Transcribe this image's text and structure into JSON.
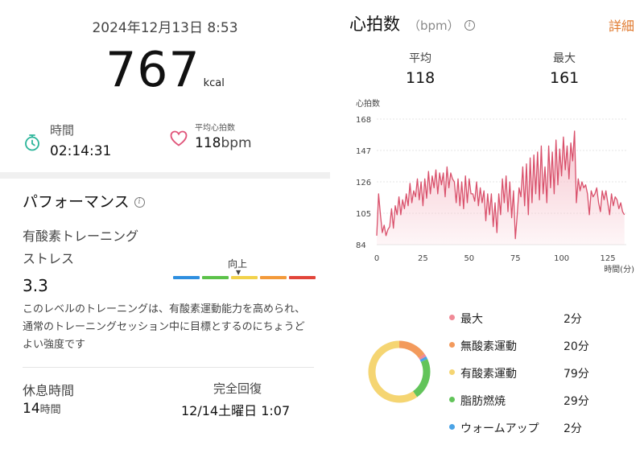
{
  "summary": {
    "datetime": "2024年12月13日 8:53",
    "calories": "767",
    "calories_unit": "kcal",
    "duration_label": "時間",
    "duration_value": "02:14:31",
    "avg_hr_label": "平均心拍数",
    "avg_hr_value": "118",
    "avg_hr_unit": "bpm"
  },
  "performance": {
    "title": "パフォーマンス",
    "stress_label_line1": "有酸素トレーニング",
    "stress_label_line2": "ストレス",
    "stress_value": "3.3",
    "bar_label": "向上",
    "bar_marker": "▼",
    "bar_colors": [
      "#2e8fe0",
      "#5cc24a",
      "#f2d24b",
      "#f39a3a",
      "#e2453a"
    ],
    "bar_level_segment": 3,
    "description": "このレベルのトレーニングは、有酸素運動能力を高められ、通常のトレーニングセッション中に目標とするのにちょうどよい強度です",
    "rest_label": "休息時間",
    "rest_value": "14",
    "rest_unit": "時間",
    "recovery_label": "完全回復",
    "recovery_value": "12/14土曜日 1:07"
  },
  "heart_rate": {
    "title": "心拍数",
    "unit": "（bpm）",
    "detail_link": "詳細",
    "avg_label": "平均",
    "avg_value": "118",
    "max_label": "最大",
    "max_value": "161"
  },
  "colors": {
    "accent": "#e07a2f",
    "hr_line": "#d9506b",
    "hr_fill": "#f6c2cc",
    "heart_icon": "#e0557a",
    "timer_icon": "#2bb59a"
  },
  "chart_data": {
    "type": "area",
    "ylabel": "心拍数",
    "xlabel": "時間(分)",
    "xlim": [
      0,
      135
    ],
    "ylim": [
      84,
      168
    ],
    "y_ticks": [
      "168",
      "147",
      "126",
      "105",
      "84"
    ],
    "x_ticks": [
      "0",
      "25",
      "50",
      "75",
      "100",
      "125"
    ],
    "x": [
      0,
      1,
      2,
      3,
      4,
      5,
      6,
      7,
      8,
      9,
      10,
      11,
      12,
      13,
      14,
      15,
      16,
      17,
      18,
      19,
      20,
      21,
      22,
      23,
      24,
      25,
      26,
      27,
      28,
      29,
      30,
      31,
      32,
      33,
      34,
      35,
      36,
      37,
      38,
      39,
      40,
      41,
      42,
      43,
      44,
      45,
      46,
      47,
      48,
      49,
      50,
      51,
      52,
      53,
      54,
      55,
      56,
      57,
      58,
      59,
      60,
      61,
      62,
      63,
      64,
      65,
      66,
      67,
      68,
      69,
      70,
      71,
      72,
      73,
      74,
      75,
      76,
      77,
      78,
      79,
      80,
      81,
      82,
      83,
      84,
      85,
      86,
      87,
      88,
      89,
      90,
      91,
      92,
      93,
      94,
      95,
      96,
      97,
      98,
      99,
      100,
      101,
      102,
      103,
      104,
      105,
      106,
      107,
      108,
      109,
      110,
      111,
      112,
      113,
      114,
      115,
      116,
      117,
      118,
      119,
      120,
      121,
      122,
      123,
      124,
      125,
      126,
      127,
      128,
      129,
      130,
      131,
      132,
      133,
      134
    ],
    "values": [
      90,
      118,
      104,
      92,
      97,
      90,
      94,
      96,
      108,
      95,
      110,
      104,
      116,
      104,
      114,
      108,
      118,
      110,
      125,
      112,
      120,
      116,
      128,
      114,
      126,
      110,
      128,
      115,
      133,
      118,
      130,
      122,
      134,
      118,
      132,
      124,
      132,
      116,
      136,
      122,
      132,
      128,
      126,
      112,
      128,
      110,
      126,
      108,
      130,
      112,
      128,
      118,
      118,
      113,
      126,
      110,
      122,
      112,
      120,
      100,
      118,
      104,
      118,
      96,
      112,
      92,
      118,
      104,
      128,
      112,
      130,
      106,
      126,
      102,
      120,
      88,
      104,
      122,
      116,
      136,
      110,
      138,
      104,
      142,
      112,
      144,
      118,
      146,
      114,
      150,
      118,
      136,
      112,
      150,
      122,
      146,
      118,
      154,
      124,
      148,
      130,
      156,
      134,
      150,
      128,
      152,
      140,
      160,
      112,
      128,
      120,
      126,
      122,
      124,
      118,
      104,
      120,
      116,
      118,
      122,
      112,
      106,
      120,
      114,
      120,
      112,
      104,
      118,
      110,
      116,
      114,
      108,
      112,
      106,
      104
    ],
    "breakdown": [
      {
        "name": "最大",
        "value": 2,
        "unit": "分",
        "display": "2分",
        "color": "#f08a96"
      },
      {
        "name": "無酸素運動",
        "value": 20,
        "unit": "分",
        "display": "20分",
        "color": "#f39a5c"
      },
      {
        "name": "有酸素運動",
        "value": 79,
        "unit": "分",
        "display": "79分",
        "color": "#f5d572"
      },
      {
        "name": "脂肪燃焼",
        "value": 29,
        "unit": "分",
        "display": "29分",
        "color": "#62c45a"
      },
      {
        "name": "ウォームアップ",
        "value": 2,
        "unit": "分",
        "display": "2分",
        "color": "#4aa3e6"
      }
    ]
  }
}
